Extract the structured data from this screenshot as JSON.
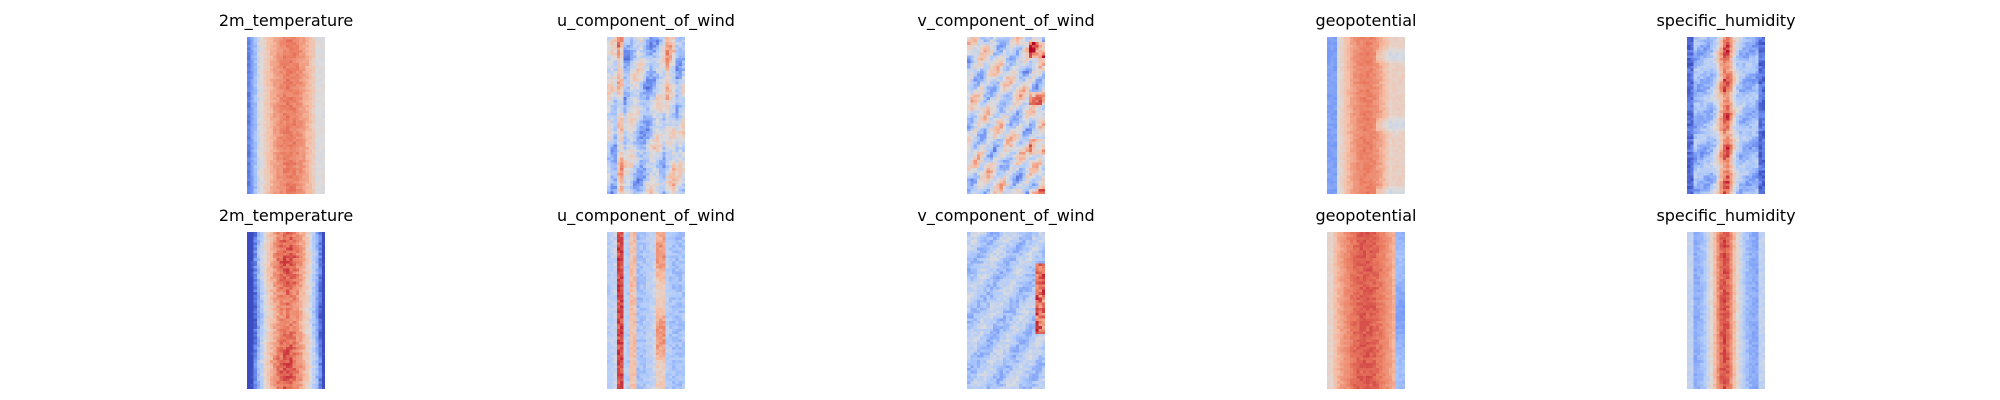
{
  "figure": {
    "colormap": "coolwarm",
    "colormap_stops": [
      "#3b4cc0",
      "#7396f5",
      "#b0cbfc",
      "#dddcdc",
      "#f6bfa6",
      "#ea7b60",
      "#b40426"
    ],
    "rows": [
      {
        "panels": [
          {
            "title": "2m_temperature",
            "style": "temp_a"
          },
          {
            "title": "u_component_of_wind",
            "style": "u_a"
          },
          {
            "title": "v_component_of_wind",
            "style": "v_a"
          },
          {
            "title": "geopotential",
            "style": "geo_a"
          },
          {
            "title": "specific_humidity",
            "style": "hum_a"
          }
        ]
      },
      {
        "panels": [
          {
            "title": "2m_temperature",
            "style": "temp_b"
          },
          {
            "title": "u_component_of_wind",
            "style": "u_b"
          },
          {
            "title": "v_component_of_wind",
            "style": "v_b"
          },
          {
            "title": "geopotential",
            "style": "geo_b"
          },
          {
            "title": "specific_humidity",
            "style": "hum_b"
          }
        ]
      }
    ]
  }
}
